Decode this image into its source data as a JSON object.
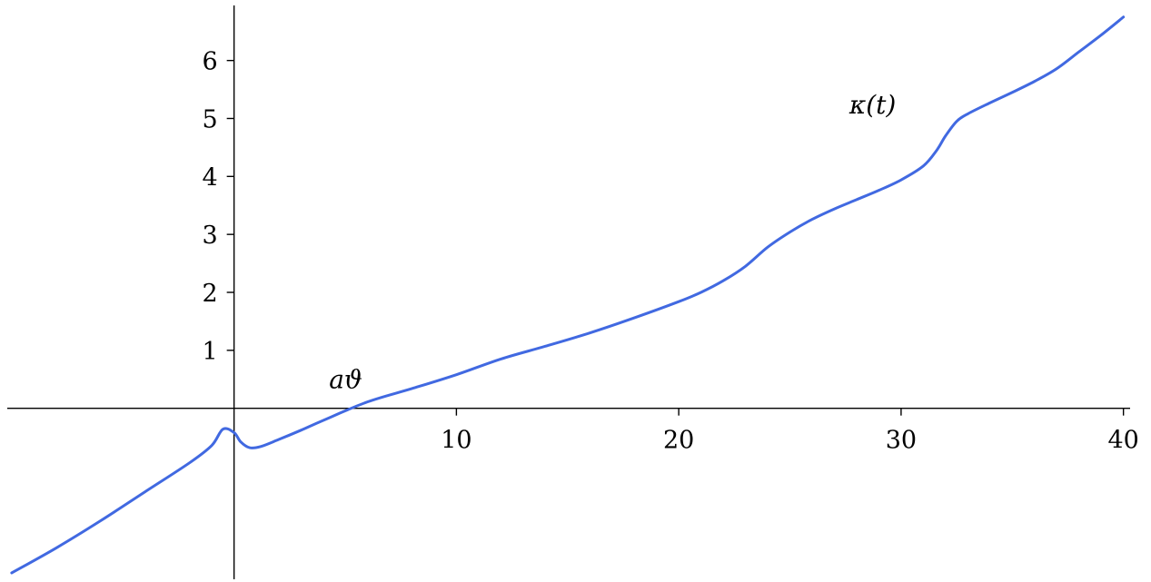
{
  "chart_data": {
    "type": "line",
    "title": "",
    "xlabel": "",
    "ylabel": "",
    "xlim": [
      -10.2,
      40.3
    ],
    "ylim": [
      -2.95,
      6.95
    ],
    "x_ticks": [
      10,
      20,
      30,
      40
    ],
    "y_ticks": [
      1,
      2,
      3,
      4,
      5,
      6
    ],
    "x_tick_labels": [
      "10",
      "20",
      "30",
      "40"
    ],
    "y_tick_labels": [
      "1",
      "2",
      "3",
      "4",
      "5",
      "6"
    ],
    "grid": false,
    "axes_through_origin": true,
    "line_color": "#4169E1",
    "series": [
      {
        "x": [
          -10.0,
          -8.0,
          -6.0,
          -4.0,
          -2.0,
          -1.0,
          -0.5,
          0.0,
          0.3,
          0.7,
          1.2,
          2.0,
          3.0,
          4.0,
          6.0,
          8.0,
          10.0,
          12.0,
          14.0,
          16.0,
          18.0,
          20.0,
          21.0,
          22.0,
          23.0,
          24.0,
          25.0,
          26.0,
          27.0,
          28.0,
          29.0,
          30.0,
          31.0,
          31.6,
          32.0,
          32.5,
          33.0,
          34.0,
          35.0,
          36.0,
          37.0,
          38.0,
          39.0,
          40.0
        ],
        "y": [
          -2.84,
          -2.41,
          -1.94,
          -1.44,
          -0.94,
          -0.64,
          -0.36,
          -0.42,
          -0.58,
          -0.68,
          -0.66,
          -0.54,
          -0.38,
          -0.21,
          0.11,
          0.34,
          0.58,
          0.85,
          1.07,
          1.3,
          1.56,
          1.84,
          2.0,
          2.2,
          2.45,
          2.78,
          3.04,
          3.26,
          3.44,
          3.6,
          3.76,
          3.94,
          4.18,
          4.45,
          4.7,
          4.95,
          5.08,
          5.27,
          5.45,
          5.64,
          5.86,
          6.15,
          6.44,
          6.75
        ]
      }
    ],
    "annotations": [
      {
        "text": "aϑ",
        "x": 6.1,
        "y": 0.16,
        "placement": "above-left"
      },
      {
        "text": "κ(t)",
        "x": 30.1,
        "y": 4.9,
        "placement": "above-left"
      }
    ]
  }
}
